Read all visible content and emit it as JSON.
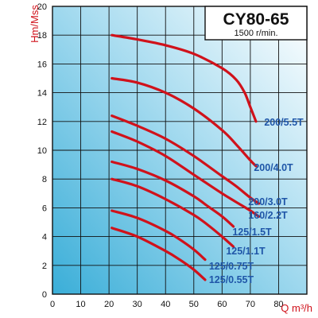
{
  "chart_data": {
    "type": "line",
    "title": "CY80-65",
    "subtitle": "1500 r/min.",
    "xlabel": "Q m³/h",
    "ylabel": "Hm/Mss",
    "xlim": [
      0,
      90
    ],
    "ylim": [
      0,
      20
    ],
    "x_ticks": [
      "0",
      "10",
      "20",
      "30",
      "40",
      "50",
      "60",
      "70",
      "80"
    ],
    "y_ticks": [
      "0",
      "2",
      "4",
      "6",
      "8",
      "10",
      "12",
      "14",
      "16",
      "18",
      "20"
    ],
    "grid": true,
    "line_color": "#d0121b",
    "label_color": "#1f56a8",
    "series": [
      {
        "name": "200/5.5T",
        "points": [
          [
            21,
            18.0
          ],
          [
            30,
            17.7
          ],
          [
            40,
            17.3
          ],
          [
            50,
            16.7
          ],
          [
            60,
            15.7
          ],
          [
            65,
            14.9
          ],
          [
            68,
            14.0
          ],
          [
            70,
            13.0
          ],
          [
            72,
            12.0
          ]
        ]
      },
      {
        "name": "200/4.0T",
        "points": [
          [
            21,
            15.0
          ],
          [
            30,
            14.7
          ],
          [
            40,
            14.0
          ],
          [
            50,
            12.9
          ],
          [
            60,
            11.4
          ],
          [
            65,
            10.4
          ],
          [
            70,
            9.3
          ],
          [
            72,
            8.9
          ]
        ]
      },
      {
        "name": "200/3.0T",
        "points": [
          [
            21,
            12.4
          ],
          [
            30,
            11.7
          ],
          [
            40,
            10.8
          ],
          [
            50,
            9.6
          ],
          [
            60,
            8.2
          ],
          [
            65,
            7.5
          ],
          [
            70,
            6.7
          ],
          [
            73,
            6.3
          ]
        ]
      },
      {
        "name": "160/2.2T",
        "points": [
          [
            21,
            11.3
          ],
          [
            30,
            10.6
          ],
          [
            40,
            9.6
          ],
          [
            50,
            8.3
          ],
          [
            60,
            7.0
          ],
          [
            65,
            6.4
          ],
          [
            70,
            5.8
          ],
          [
            73,
            5.4
          ]
        ]
      },
      {
        "name": "125/1.5T",
        "points": [
          [
            21,
            9.2
          ],
          [
            30,
            8.7
          ],
          [
            40,
            7.9
          ],
          [
            50,
            6.8
          ],
          [
            55,
            6.1
          ],
          [
            60,
            5.4
          ],
          [
            64,
            4.7
          ]
        ]
      },
      {
        "name": "125/1.1T",
        "points": [
          [
            21,
            8.0
          ],
          [
            30,
            7.5
          ],
          [
            40,
            6.6
          ],
          [
            50,
            5.5
          ],
          [
            55,
            4.8
          ],
          [
            60,
            4.0
          ],
          [
            64,
            3.3
          ]
        ]
      },
      {
        "name": "125/0.75T",
        "points": [
          [
            21,
            5.8
          ],
          [
            30,
            5.3
          ],
          [
            40,
            4.4
          ],
          [
            45,
            3.8
          ],
          [
            50,
            3.1
          ],
          [
            54,
            2.4
          ]
        ]
      },
      {
        "name": "125/0.55T",
        "points": [
          [
            21,
            4.6
          ],
          [
            30,
            4.0
          ],
          [
            40,
            3.0
          ],
          [
            45,
            2.4
          ],
          [
            50,
            1.7
          ],
          [
            54,
            1.0
          ]
        ]
      }
    ]
  }
}
